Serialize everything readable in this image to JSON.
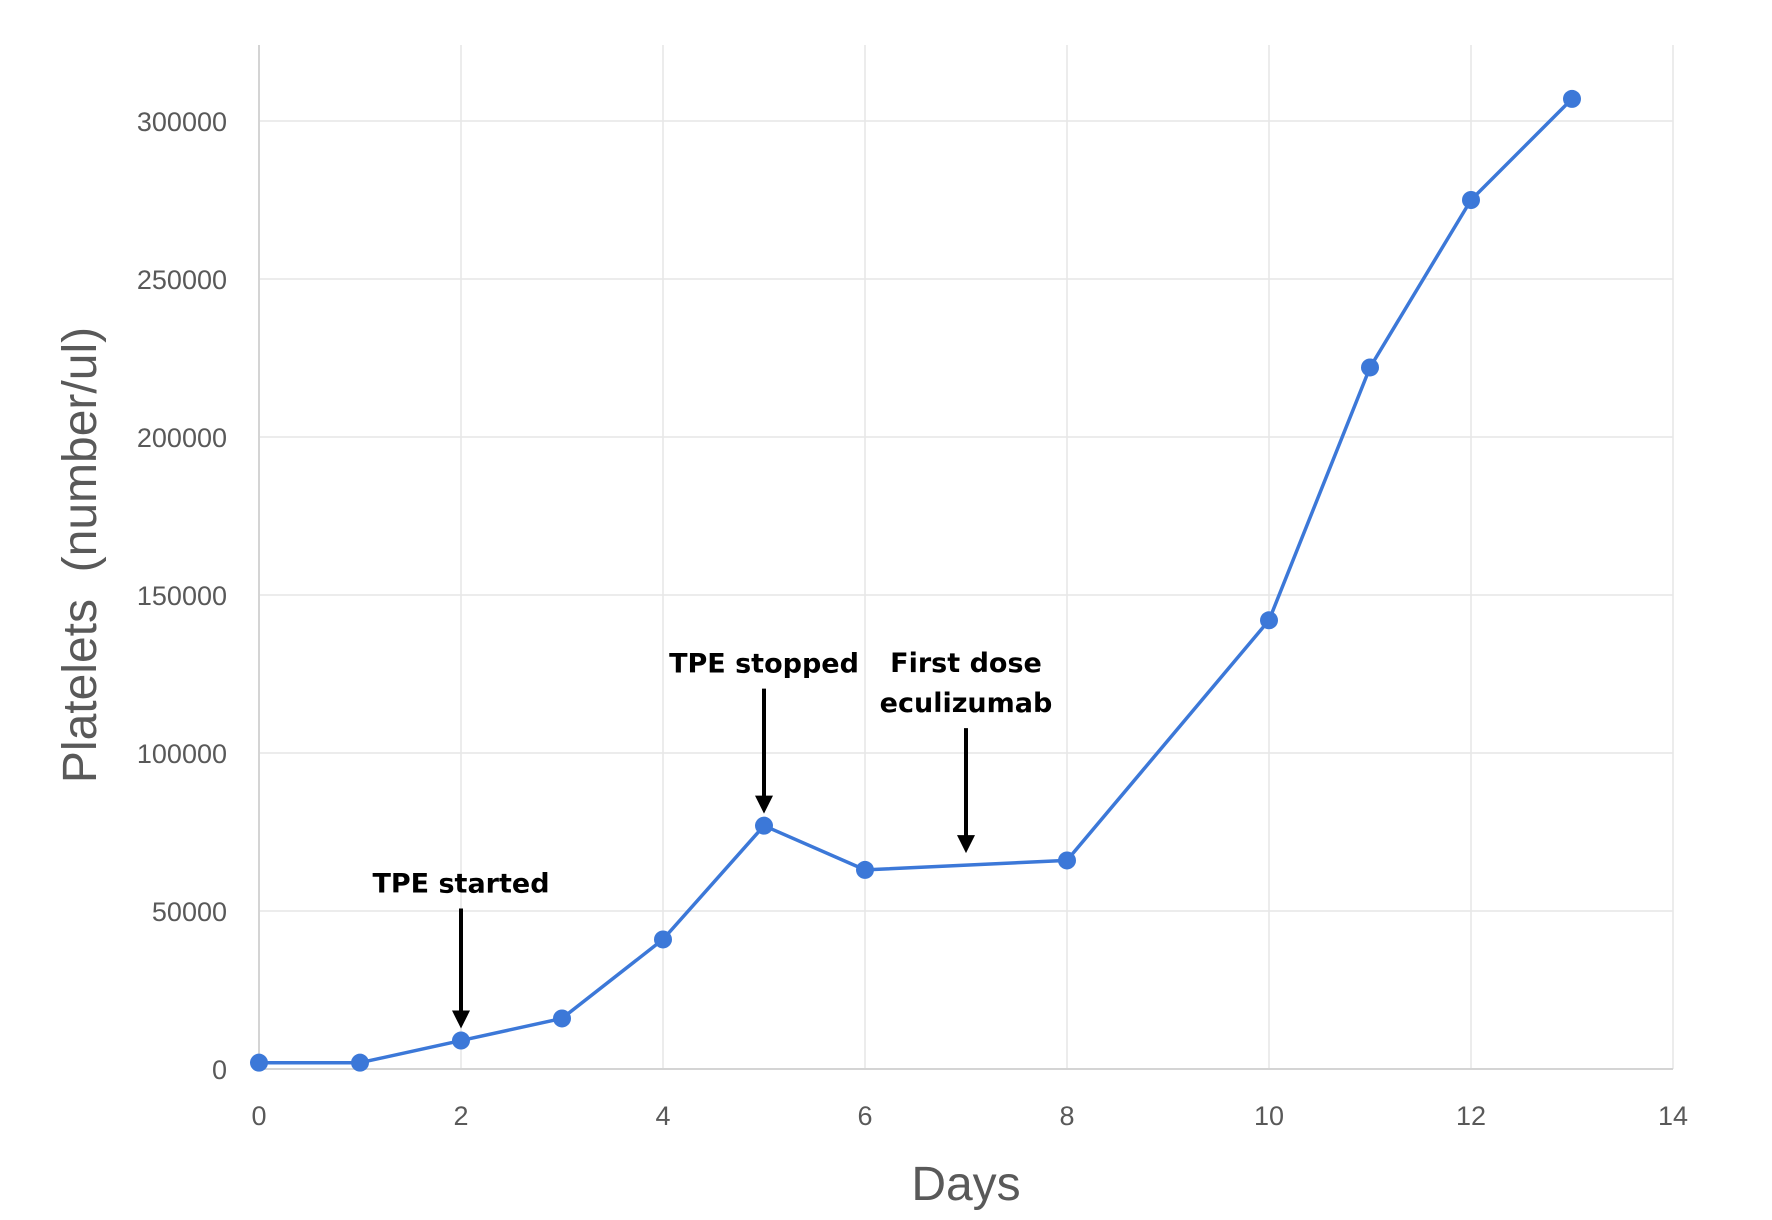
{
  "chart_data": {
    "type": "line",
    "title": "",
    "xlabel": "Days",
    "ylabel": "Platelets  (number/ul)",
    "xlim": [
      0,
      14
    ],
    "ylim": [
      0,
      300000
    ],
    "xticks": [
      0,
      2,
      4,
      6,
      8,
      10,
      12,
      14
    ],
    "yticks": [
      0,
      50000,
      100000,
      150000,
      200000,
      250000,
      300000
    ],
    "grid": true,
    "legend": "none",
    "series_color": "#3C78D8",
    "series": [
      {
        "x": [
          0,
          1,
          2,
          3,
          4,
          5,
          6,
          8,
          10,
          11,
          12,
          13
        ],
        "y": [
          2000,
          2000,
          9000,
          16000,
          41000,
          77000,
          63000,
          66000,
          142000,
          222000,
          275000,
          307000
        ]
      }
    ],
    "annotations": [
      {
        "lines": [
          "TPE started"
        ],
        "x": 2,
        "y": 9000
      },
      {
        "lines": [
          "TPE stopped"
        ],
        "x": 5,
        "y": 77000
      },
      {
        "lines": [
          "First dose",
          "eculizumab"
        ],
        "x": 7,
        "y": 64500
      }
    ]
  }
}
